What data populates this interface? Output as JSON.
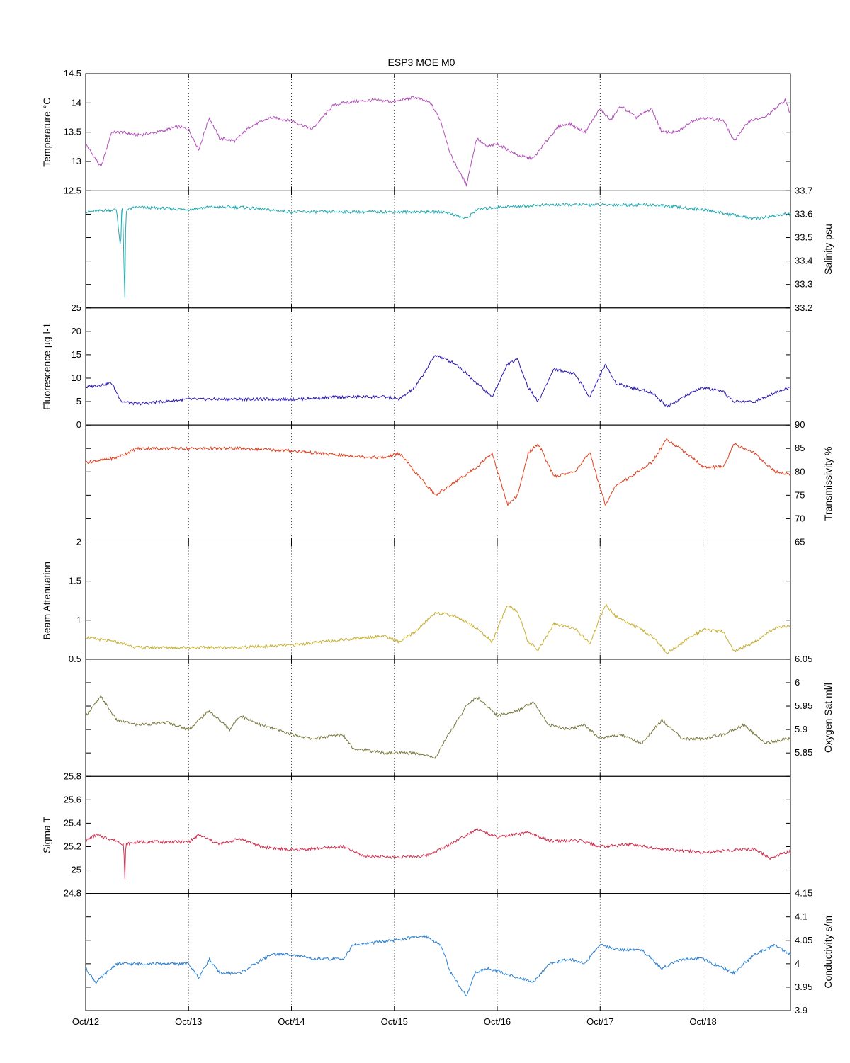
{
  "title": "ESP3 MOE   M0",
  "x_tick_labels": [
    "Oct/12",
    "Oct/13",
    "Oct/14",
    "Oct/15",
    "Oct/16",
    "Oct/17",
    "Oct/18"
  ],
  "chart_data": [
    {
      "type": "line",
      "name": "temperature",
      "ylabel": "Temperature °C",
      "axis_side": "left",
      "color": "#b050b8",
      "ylim": [
        12.5,
        14.5
      ],
      "yticks": [
        12.5,
        13,
        13.5,
        14,
        14.5
      ],
      "ytick_labels": [
        "12.5",
        "13",
        "13.5",
        "14",
        "14.5"
      ],
      "x": [
        0,
        0.15,
        0.25,
        0.35,
        0.5,
        0.7,
        0.9,
        1.0,
        1.1,
        1.2,
        1.3,
        1.45,
        1.6,
        1.8,
        2.0,
        2.2,
        2.4,
        2.5,
        2.6,
        2.8,
        3.0,
        3.2,
        3.35,
        3.45,
        3.55,
        3.7,
        3.8,
        3.9,
        4.0,
        4.2,
        4.35,
        4.5,
        4.6,
        4.7,
        4.85,
        5.0,
        5.1,
        5.2,
        5.35,
        5.5,
        5.6,
        5.75,
        5.9,
        6.0,
        6.2,
        6.3,
        6.45,
        6.6,
        6.8,
        6.85
      ],
      "y": [
        13.3,
        12.9,
        13.5,
        13.5,
        13.45,
        13.5,
        13.6,
        13.55,
        13.2,
        13.75,
        13.4,
        13.35,
        13.6,
        13.75,
        13.7,
        13.55,
        13.95,
        14.0,
        14.02,
        14.05,
        14.02,
        14.1,
        14.0,
        13.7,
        13.1,
        12.6,
        13.4,
        13.25,
        13.3,
        13.1,
        13.05,
        13.4,
        13.6,
        13.65,
        13.5,
        13.9,
        13.7,
        13.95,
        13.75,
        13.9,
        13.5,
        13.5,
        13.7,
        13.75,
        13.7,
        13.35,
        13.7,
        13.75,
        14.05,
        13.8
      ]
    },
    {
      "type": "line",
      "name": "salinity",
      "ylabel": "Salinity psu",
      "axis_side": "right",
      "color": "#22aab0",
      "ylim": [
        33.2,
        33.7
      ],
      "yticks": [
        33.2,
        33.3,
        33.4,
        33.5,
        33.6,
        33.7
      ],
      "ytick_labels": [
        "33.2",
        "33.3",
        "33.4",
        "33.5",
        "33.6",
        "33.7"
      ],
      "x": [
        0,
        0.3,
        0.34,
        0.35,
        0.36,
        0.38,
        0.39,
        0.4,
        0.5,
        1.0,
        1.2,
        1.5,
        2.0,
        3.0,
        3.5,
        3.7,
        3.8,
        4.0,
        4.5,
        5.0,
        5.5,
        6.0,
        6.5,
        6.8,
        6.85
      ],
      "y": [
        33.61,
        33.62,
        33.45,
        33.62,
        33.62,
        33.22,
        33.6,
        33.62,
        33.63,
        33.62,
        33.63,
        33.63,
        33.61,
        33.61,
        33.61,
        33.58,
        33.62,
        33.63,
        33.64,
        33.64,
        33.64,
        33.62,
        33.58,
        33.6,
        33.6
      ]
    },
    {
      "type": "line",
      "name": "fluorescence",
      "ylabel": "Fluorescence µg l-1",
      "axis_side": "left",
      "color": "#2b1ab0",
      "ylim": [
        0,
        25
      ],
      "yticks": [
        0,
        5,
        10,
        15,
        20,
        25
      ],
      "ytick_labels": [
        "0",
        "5",
        "10",
        "15",
        "20",
        "25"
      ],
      "x": [
        0,
        0.25,
        0.35,
        0.5,
        1.0,
        1.5,
        2.0,
        2.5,
        2.9,
        3.05,
        3.2,
        3.4,
        3.6,
        3.8,
        3.95,
        4.1,
        4.2,
        4.3,
        4.4,
        4.55,
        4.75,
        4.9,
        5.05,
        5.15,
        5.3,
        5.5,
        5.65,
        5.9,
        6.0,
        6.2,
        6.3,
        6.5,
        6.7,
        6.85
      ],
      "y": [
        8,
        9,
        5,
        4.5,
        5.5,
        5.5,
        5.5,
        6,
        6,
        5.5,
        8,
        15,
        13,
        9,
        6,
        13,
        14,
        8,
        5,
        12,
        11,
        6,
        13,
        9,
        8,
        7,
        4,
        7,
        8,
        7,
        5,
        5,
        7,
        8
      ]
    },
    {
      "type": "line",
      "name": "transmissivity",
      "ylabel": "Transmissivity %",
      "axis_side": "right",
      "color": "#e04020",
      "ylim": [
        65,
        90
      ],
      "yticks": [
        65,
        70,
        75,
        80,
        85,
        90
      ],
      "ytick_labels": [
        "65",
        "70",
        "75",
        "80",
        "85",
        "90"
      ],
      "x": [
        0,
        0.3,
        0.5,
        1.0,
        1.5,
        2.0,
        2.5,
        2.9,
        3.05,
        3.2,
        3.4,
        3.6,
        3.8,
        3.95,
        4.1,
        4.2,
        4.3,
        4.4,
        4.55,
        4.75,
        4.9,
        5.05,
        5.15,
        5.3,
        5.5,
        5.65,
        5.9,
        6.0,
        6.2,
        6.3,
        6.5,
        6.7,
        6.85
      ],
      "y": [
        82,
        83,
        85,
        85,
        85,
        84.5,
        83.5,
        83,
        84,
        80,
        75,
        78,
        81,
        84,
        73,
        75,
        84,
        86,
        79,
        80,
        84,
        73,
        77,
        79,
        82,
        87,
        83,
        81,
        81,
        86,
        84,
        80,
        79.5
      ]
    },
    {
      "type": "line",
      "name": "beam_attenuation",
      "ylabel": "Beam Attenuation",
      "axis_side": "left",
      "color": "#c8b032",
      "ylim": [
        0.5,
        2
      ],
      "yticks": [
        0.5,
        1,
        1.5,
        2
      ],
      "ytick_labels": [
        "0.5",
        "1",
        "1.5",
        "2"
      ],
      "x": [
        0,
        0.3,
        0.5,
        1.0,
        1.5,
        2.0,
        2.5,
        2.9,
        3.05,
        3.2,
        3.4,
        3.6,
        3.8,
        3.95,
        4.1,
        4.2,
        4.3,
        4.4,
        4.55,
        4.75,
        4.9,
        5.05,
        5.15,
        5.3,
        5.5,
        5.65,
        5.9,
        6.0,
        6.2,
        6.3,
        6.5,
        6.7,
        6.85
      ],
      "y": [
        0.78,
        0.72,
        0.65,
        0.65,
        0.65,
        0.68,
        0.75,
        0.8,
        0.72,
        0.85,
        1.1,
        1.05,
        0.9,
        0.72,
        1.2,
        1.1,
        0.72,
        0.62,
        0.95,
        0.9,
        0.7,
        1.2,
        1.05,
        0.95,
        0.8,
        0.58,
        0.8,
        0.88,
        0.85,
        0.6,
        0.72,
        0.9,
        0.92
      ]
    },
    {
      "type": "line",
      "name": "oxygen_sat",
      "ylabel": "Oxygen Sat ml/l",
      "axis_side": "right",
      "color": "#7a7a40",
      "ylim": [
        5.8,
        6.05
      ],
      "yticks": [
        5.85,
        5.9,
        5.95,
        6,
        6.05
      ],
      "ytick_labels": [
        "5.85",
        "5.9",
        "5.95",
        "6",
        "6.05"
      ],
      "x": [
        0,
        0.15,
        0.3,
        0.5,
        0.8,
        1.0,
        1.2,
        1.4,
        1.5,
        1.7,
        2.0,
        2.2,
        2.5,
        2.6,
        2.9,
        3.2,
        3.4,
        3.5,
        3.7,
        3.8,
        4.0,
        4.2,
        4.35,
        4.5,
        4.7,
        4.85,
        5.0,
        5.2,
        5.4,
        5.6,
        5.8,
        6.0,
        6.2,
        6.4,
        6.6,
        6.8,
        6.85
      ],
      "y": [
        5.93,
        5.97,
        5.92,
        5.91,
        5.915,
        5.9,
        5.94,
        5.9,
        5.93,
        5.91,
        5.89,
        5.88,
        5.89,
        5.86,
        5.85,
        5.85,
        5.84,
        5.88,
        5.95,
        5.97,
        5.93,
        5.94,
        5.96,
        5.91,
        5.9,
        5.91,
        5.88,
        5.89,
        5.87,
        5.92,
        5.88,
        5.88,
        5.89,
        5.91,
        5.87,
        5.88,
        5.88
      ]
    },
    {
      "type": "line",
      "name": "sigma_t",
      "ylabel": "Sigma T",
      "axis_side": "left",
      "color": "#d03050",
      "ylim": [
        24.8,
        25.8
      ],
      "yticks": [
        24.8,
        25,
        25.2,
        25.4,
        25.6,
        25.8
      ],
      "ytick_labels": [
        "24.8",
        "25",
        "25.2",
        "25.4",
        "25.6",
        "25.8"
      ],
      "x": [
        0,
        0.1,
        0.3,
        0.37,
        0.38,
        0.39,
        0.5,
        1.0,
        1.1,
        1.3,
        1.5,
        1.7,
        2.0,
        2.5,
        2.7,
        3.0,
        3.3,
        3.5,
        3.7,
        3.8,
        4.0,
        4.3,
        4.5,
        4.8,
        5.0,
        5.3,
        5.6,
        6.0,
        6.3,
        6.5,
        6.65,
        6.8,
        6.85
      ],
      "y": [
        25.25,
        25.3,
        25.25,
        25.22,
        24.9,
        25.22,
        25.24,
        25.24,
        25.3,
        25.22,
        25.27,
        25.2,
        25.17,
        25.2,
        25.12,
        25.11,
        25.12,
        25.2,
        25.3,
        25.35,
        25.28,
        25.32,
        25.25,
        25.25,
        25.2,
        25.22,
        25.18,
        25.15,
        25.17,
        25.18,
        25.1,
        25.15,
        25.16
      ]
    },
    {
      "type": "line",
      "name": "conductivity",
      "ylabel": "Conductivity s/m",
      "axis_side": "right",
      "color": "#2a80d0",
      "ylim": [
        3.9,
        4.15
      ],
      "yticks": [
        3.9,
        3.95,
        4,
        4.05,
        4.1,
        4.15
      ],
      "ytick_labels": [
        "3.9",
        "3.95",
        "4",
        "4.05",
        "4.1",
        "4.15"
      ],
      "x": [
        0,
        0.1,
        0.3,
        0.5,
        1.0,
        1.1,
        1.2,
        1.3,
        1.5,
        1.8,
        2.0,
        2.2,
        2.5,
        2.6,
        2.8,
        3.0,
        3.3,
        3.45,
        3.55,
        3.7,
        3.78,
        3.9,
        4.0,
        4.2,
        4.35,
        4.5,
        4.7,
        4.85,
        5.0,
        5.2,
        5.4,
        5.6,
        5.8,
        6.0,
        6.3,
        6.5,
        6.7,
        6.85
      ],
      "y": [
        3.99,
        3.96,
        4.0,
        4.0,
        4.0,
        3.97,
        4.01,
        3.98,
        3.98,
        4.02,
        4.02,
        4.01,
        4.01,
        4.04,
        4.045,
        4.05,
        4.06,
        4.04,
        3.98,
        3.93,
        3.98,
        3.99,
        3.985,
        3.97,
        3.96,
        4.0,
        4.01,
        4.0,
        4.04,
        4.03,
        4.03,
        3.99,
        4.01,
        4.01,
        3.98,
        4.02,
        4.04,
        4.02
      ]
    }
  ]
}
